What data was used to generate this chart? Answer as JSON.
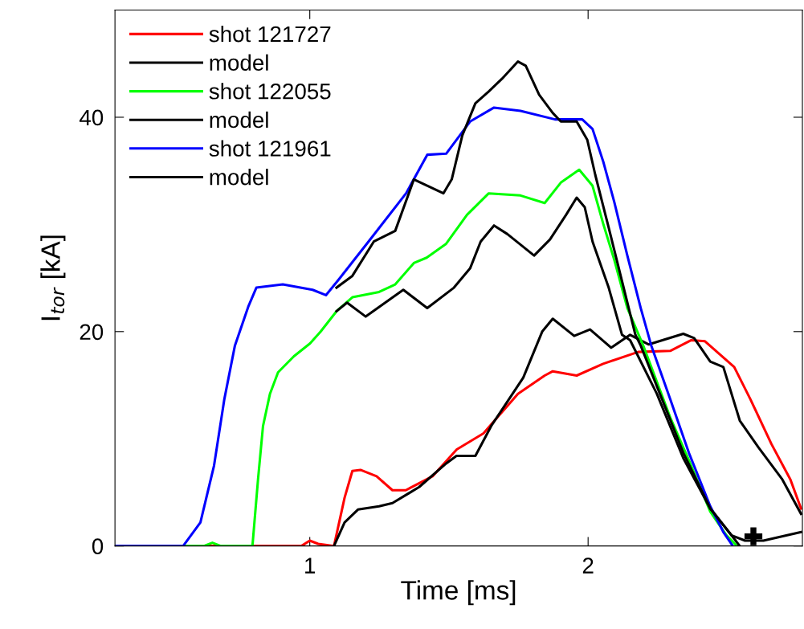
{
  "chart_data": {
    "type": "line",
    "xlabel": "Time [ms]",
    "ylabel": "I$_{tor}$ [kA]",
    "xlim": [
      0.3,
      2.77
    ],
    "ylim": [
      0,
      50
    ],
    "xticks": [
      1,
      2
    ],
    "yticks": [
      0,
      20,
      40
    ],
    "grid": false,
    "legend": "top left",
    "line_style": "solid",
    "series": [
      {
        "name": "shot 121727",
        "color": "#ff0000",
        "x": [
          0.3,
          0.97,
          1.0,
          1.03,
          1.087,
          1.125,
          1.153,
          1.182,
          1.24,
          1.297,
          1.345,
          1.441,
          1.528,
          1.624,
          1.681,
          1.748,
          1.844,
          1.873,
          1.959,
          2.054,
          2.18,
          2.295,
          2.371,
          2.42,
          2.525,
          2.583,
          2.659,
          2.727,
          2.765
        ],
        "values": [
          0,
          0,
          0.5,
          0.2,
          0,
          4.5,
          7.0,
          7.1,
          6.5,
          5.2,
          5.2,
          6.5,
          9.0,
          10.5,
          12.2,
          14.2,
          15.9,
          16.3,
          15.9,
          17.0,
          18.1,
          18.2,
          19.2,
          19.1,
          16.7,
          13.7,
          9.5,
          6.2,
          3.5
        ]
      },
      {
        "name": "model",
        "color": "#000000",
        "x": [
          1.087,
          1.125,
          1.173,
          1.249,
          1.297,
          1.393,
          1.49,
          1.527,
          1.595,
          1.652,
          1.767,
          1.835,
          1.873,
          1.95,
          2.007,
          2.083,
          2.151,
          2.218,
          2.342,
          2.381,
          2.439,
          2.486,
          2.545,
          2.612,
          2.698,
          2.765
        ],
        "values": [
          0,
          2.2,
          3.4,
          3.7,
          4.0,
          5.5,
          7.7,
          8.4,
          8.4,
          11.2,
          15.7,
          20.0,
          21.2,
          19.6,
          20.2,
          18.5,
          19.7,
          18.8,
          19.8,
          19.4,
          17.2,
          16.7,
          11.7,
          9.2,
          6.2,
          3.0
        ]
      },
      {
        "name": "shot 122055",
        "color": "#00ff00",
        "x": [
          0.3,
          0.62,
          0.65,
          0.68,
          0.794,
          0.814,
          0.832,
          0.857,
          0.886,
          0.943,
          1.001,
          1.039,
          1.096,
          1.153,
          1.249,
          1.307,
          1.374,
          1.42,
          1.49,
          1.565,
          1.643,
          1.757,
          1.844,
          1.902,
          1.968,
          2.016,
          2.054,
          2.094,
          2.141,
          2.198,
          2.295,
          2.362,
          2.439,
          2.497,
          2.535
        ],
        "values": [
          0,
          0,
          0.3,
          0,
          0,
          6.2,
          11.2,
          14.2,
          16.2,
          17.7,
          18.9,
          20.0,
          21.9,
          23.2,
          23.7,
          24.4,
          26.4,
          26.9,
          28.2,
          30.9,
          32.9,
          32.7,
          32.0,
          33.9,
          35.1,
          33.6,
          30.1,
          26.7,
          22.2,
          18.7,
          12.0,
          8.0,
          3.2,
          1.0,
          0
        ]
      },
      {
        "name": "model",
        "color": "#000000",
        "x": [
          1.096,
          1.134,
          1.201,
          1.336,
          1.422,
          1.518,
          1.576,
          1.614,
          1.662,
          1.71,
          1.806,
          1.863,
          1.921,
          1.959,
          1.988,
          2.016,
          2.074,
          2.122,
          2.151,
          2.247,
          2.342,
          2.439,
          2.515,
          2.545
        ],
        "values": [
          21.9,
          22.7,
          21.4,
          23.9,
          22.2,
          24.1,
          25.9,
          28.4,
          29.9,
          29.1,
          27.1,
          28.6,
          30.9,
          32.5,
          31.6,
          28.4,
          24.1,
          19.7,
          19.2,
          14.2,
          8.2,
          3.5,
          1.0,
          0
        ]
      },
      {
        "name": "shot 121961",
        "color": "#0000ff",
        "x": [
          0.3,
          0.545,
          0.607,
          0.656,
          0.693,
          0.731,
          0.78,
          0.808,
          0.903,
          1.01,
          1.058,
          1.105,
          1.211,
          1.346,
          1.422,
          1.49,
          1.576,
          1.662,
          1.757,
          1.881,
          1.979,
          2.016,
          2.054,
          2.094,
          2.141,
          2.189,
          2.227,
          2.295,
          2.362,
          2.439,
          2.486,
          2.52
        ],
        "values": [
          0,
          0,
          2.2,
          7.5,
          13.7,
          18.7,
          22.4,
          24.1,
          24.4,
          23.9,
          23.4,
          24.9,
          28.4,
          32.9,
          36.5,
          36.6,
          39.6,
          40.9,
          40.6,
          39.8,
          39.8,
          38.9,
          35.9,
          32.1,
          27.1,
          22.2,
          18.7,
          13.7,
          8.7,
          3.7,
          1.3,
          0
        ]
      },
      {
        "name": "model",
        "color": "#000000",
        "x": [
          1.096,
          1.153,
          1.23,
          1.307,
          1.374,
          1.48,
          1.51,
          1.548,
          1.595,
          1.643,
          1.691,
          1.748,
          1.776,
          1.824,
          1.873,
          1.902,
          1.959,
          1.997,
          2.026,
          2.074,
          2.122,
          2.17,
          2.189,
          2.342,
          2.439,
          2.515,
          2.564,
          2.63,
          2.765
        ],
        "values": [
          24.1,
          25.2,
          28.4,
          29.4,
          34.2,
          32.9,
          34.2,
          38.3,
          41.3,
          42.4,
          43.6,
          45.2,
          44.8,
          42.1,
          40.4,
          39.6,
          39.6,
          37.9,
          34.6,
          29.7,
          24.7,
          19.7,
          18.7,
          8.7,
          3.5,
          1.0,
          0.5,
          0.5,
          1.3
        ]
      },
      {
        "type": "scatter",
        "marker": "cross",
        "color": "#000000",
        "x": [
          2.594
        ],
        "values": [
          0.9
        ]
      }
    ]
  }
}
